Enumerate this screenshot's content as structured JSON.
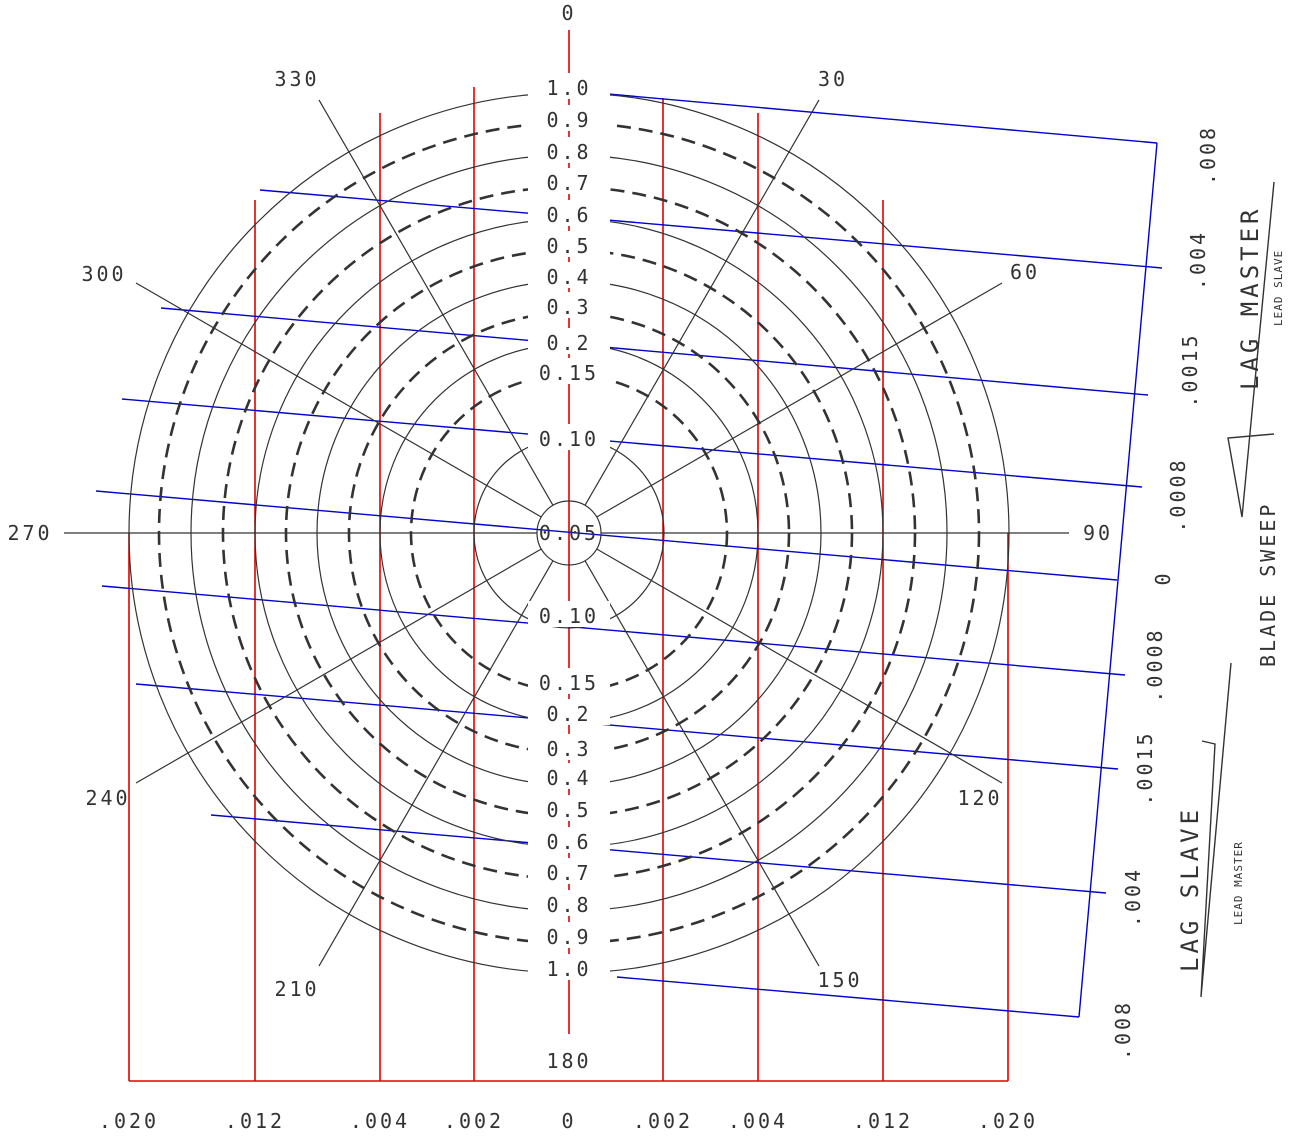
{
  "center_label": "0.05",
  "radii_labels": {
    "upper": [
      "1.0",
      "0.9",
      "0.8",
      "0.7",
      "0.6",
      "0.5",
      "0.4",
      "0.3",
      "0.2",
      "0.15",
      "0.10"
    ],
    "lower": [
      "0.10",
      "0.15",
      "0.2",
      "0.3",
      "0.4",
      "0.5",
      "0.6",
      "0.7",
      "0.8",
      "0.9",
      "1.0"
    ]
  },
  "angles": [
    {
      "deg": 0,
      "label": "0"
    },
    {
      "deg": 30,
      "label": "30"
    },
    {
      "deg": 60,
      "label": "60"
    },
    {
      "deg": 90,
      "label": "90"
    },
    {
      "deg": 120,
      "label": "120"
    },
    {
      "deg": 150,
      "label": "150"
    },
    {
      "deg": 180,
      "label": "180"
    },
    {
      "deg": 210,
      "label": "210"
    },
    {
      "deg": 240,
      "label": "240"
    },
    {
      "deg": 270,
      "label": "270"
    },
    {
      "deg": 300,
      "label": "300"
    },
    {
      "deg": 330,
      "label": "330"
    }
  ],
  "bottom_scale": [
    ".020",
    ".012",
    ".004",
    ".002",
    "0",
    ".002",
    ".004",
    ".012",
    ".020"
  ],
  "right_scale": [
    ".008",
    ".004",
    ".0015",
    ".0008",
    "0",
    ".0008",
    ".0015",
    ".004",
    ".008"
  ],
  "text": {
    "lag_master": "LAG MASTER",
    "lead_slave": "LEAD SLAVE",
    "blade_sweep": "BLADE SWEEP",
    "lag_slave": "LAG SLAVE",
    "lead_master": "LEAD MASTER"
  },
  "colors": {
    "red": "#e00000",
    "blue": "#0000cc",
    "black": "#333333"
  }
}
